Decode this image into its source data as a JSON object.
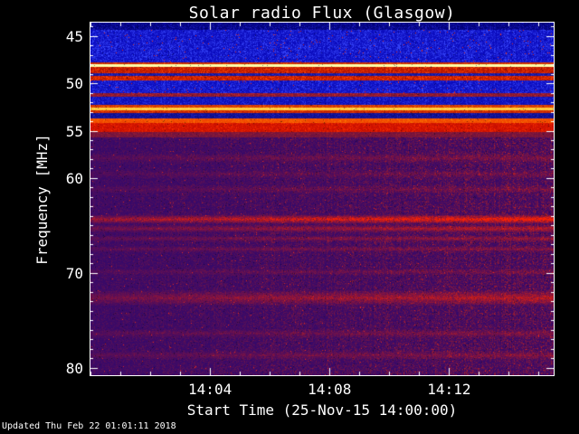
{
  "chart_data": {
    "type": "heatmap",
    "title": "Solar radio Flux (Glasgow)",
    "xlabel": "Start Time (25-Nov-15 14:00:00)",
    "ylabel": "Frequency [MHz]",
    "updated": "Updated Thu Feb 22 01:01:11 2018",
    "legend_position": "none",
    "grid": false,
    "colors": {
      "background": "#000000",
      "axis": "#ffffff",
      "text": "#ffffff",
      "line_red": "#ff2200"
    },
    "x_axis": {
      "start_time": "25-Nov-15 14:00:00",
      "range_minutes": [
        0,
        15.5
      ],
      "minor_tick_every_minutes": 1,
      "major_ticks": [
        {
          "minute": 4,
          "label": "14:04"
        },
        {
          "minute": 8,
          "label": "14:08"
        },
        {
          "minute": 12,
          "label": "14:12"
        }
      ]
    },
    "y_axis": {
      "range_mhz": [
        43.6,
        80.8
      ],
      "minor_tick_every_mhz": 1,
      "major_ticks": [
        {
          "mhz": 45,
          "label": "45"
        },
        {
          "mhz": 50,
          "label": "50"
        },
        {
          "mhz": 55,
          "label": "55"
        },
        {
          "mhz": 60,
          "label": "60"
        },
        {
          "mhz": 70,
          "label": "70"
        },
        {
          "mhz": 80,
          "label": "80"
        }
      ]
    },
    "bands": [
      {
        "f": [
          43.6,
          44.4
        ],
        "base": "#000078",
        "noise": "#2020c8",
        "noise_amt": 0.5
      },
      {
        "f": [
          44.4,
          47.75
        ],
        "base": "#0909bb",
        "noise": "#3a4aff",
        "noise_amt": 0.55,
        "red_speckle": 0.012
      },
      {
        "f": [
          47.75,
          48.0
        ],
        "base": "#bb2200",
        "noise": "#ff5500",
        "noise_amt": 0.45
      },
      {
        "f": [
          48.0,
          48.3
        ],
        "base": "#ffffb4",
        "noise": "#ffff66",
        "noise_amt": 0.25
      },
      {
        "f": [
          48.3,
          48.9
        ],
        "base": "#b31300",
        "noise": "#ff4400",
        "noise_amt": 0.55
      },
      {
        "f": [
          48.9,
          49.25
        ],
        "base": "#131390",
        "noise": "#3232dc",
        "noise_amt": 0.5
      },
      {
        "f": [
          49.25,
          49.7
        ],
        "base": "#b81600",
        "noise": "#ff4200",
        "noise_amt": 0.65
      },
      {
        "f": [
          49.7,
          51.05
        ],
        "base": "#0a0abb",
        "noise": "#3a4aff",
        "noise_amt": 0.5,
        "red_speckle": 0.01
      },
      {
        "f": [
          51.05,
          51.4
        ],
        "base": "#7a1636",
        "noise": "#d02828",
        "noise_amt": 0.5
      },
      {
        "f": [
          51.4,
          52.3
        ],
        "base": "#0a0ab2",
        "noise": "#3040f0",
        "noise_amt": 0.5
      },
      {
        "f": [
          52.3,
          52.55
        ],
        "base": "#d23000",
        "noise": "#ff7700",
        "noise_amt": 0.4
      },
      {
        "f": [
          52.55,
          52.85
        ],
        "base": "#ffc832",
        "noise": "#ffe98c",
        "noise_amt": 0.3
      },
      {
        "f": [
          52.85,
          53.15
        ],
        "base": "#c22000",
        "noise": "#ff5500",
        "noise_amt": 0.45
      },
      {
        "f": [
          53.15,
          53.75
        ],
        "base": "#0d0d88",
        "noise": "#2828c8",
        "noise_amt": 0.45
      },
      {
        "f": [
          53.75,
          54.2
        ],
        "base": "#f04400",
        "noise": "#ff8800",
        "noise_amt": 0.35
      },
      {
        "f": [
          54.2,
          55.15
        ],
        "base": "#c80e00",
        "noise": "#ff3200",
        "noise_amt": 0.45
      },
      {
        "f": [
          55.15,
          55.7
        ],
        "base": "#6e1240",
        "noise": "#a8242e",
        "noise_amt": 0.4
      },
      {
        "f": [
          55.7,
          80.8
        ],
        "base": "#36096a",
        "noise": "#b42222",
        "noise_amt": 0.3,
        "x_gradient": true,
        "red_speckle": 0.004
      }
    ],
    "red_lines": [
      {
        "f_mhz": 57.9,
        "width_mhz": 0.5,
        "strength": 0.22
      },
      {
        "f_mhz": 59.6,
        "width_mhz": 0.5,
        "strength": 0.16
      },
      {
        "f_mhz": 61.2,
        "width_mhz": 0.45,
        "strength": 0.18
      },
      {
        "f_mhz": 64.35,
        "width_mhz": 0.5,
        "strength": 0.92
      },
      {
        "f_mhz": 65.35,
        "width_mhz": 0.4,
        "strength": 0.5
      },
      {
        "f_mhz": 66.4,
        "width_mhz": 0.35,
        "strength": 0.32
      },
      {
        "f_mhz": 67.5,
        "width_mhz": 0.35,
        "strength": 0.25
      },
      {
        "f_mhz": 69.9,
        "width_mhz": 0.4,
        "strength": 0.18
      },
      {
        "f_mhz": 72.65,
        "width_mhz": 0.85,
        "strength": 0.5
      },
      {
        "f_mhz": 76.4,
        "width_mhz": 0.5,
        "strength": 0.22
      },
      {
        "f_mhz": 78.7,
        "width_mhz": 0.5,
        "strength": 0.25
      }
    ]
  }
}
